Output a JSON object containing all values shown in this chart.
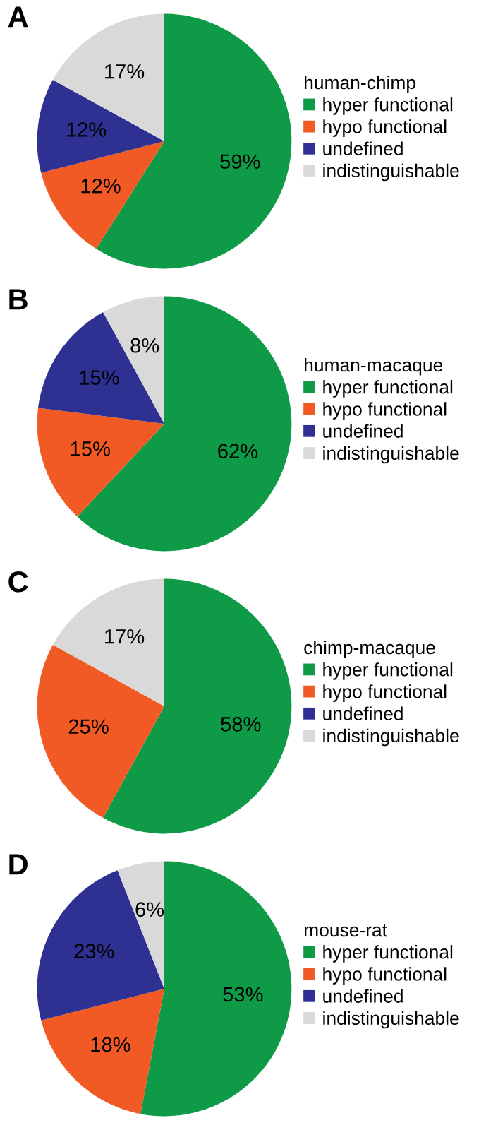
{
  "chart_data": [
    {
      "type": "pie",
      "title": "A",
      "legend_title": "human-chimp",
      "categories": [
        "hyper functional",
        "hypo functional",
        "undefined",
        "indistinguishable"
      ],
      "values": [
        59,
        12,
        12,
        17
      ],
      "value_labels": [
        "59%",
        "12%",
        "12%",
        "17%"
      ],
      "colors": [
        "#0f9a48",
        "#f15a24",
        "#2e3192",
        "#d9d9d9"
      ],
      "legend": "right"
    },
    {
      "type": "pie",
      "title": "B",
      "legend_title": "human-macaque",
      "categories": [
        "hyper functional",
        "hypo functional",
        "undefined",
        "indistinguishable"
      ],
      "values": [
        62,
        15,
        15,
        8
      ],
      "value_labels": [
        "62%",
        "15%",
        "15%",
        "8%"
      ],
      "colors": [
        "#0f9a48",
        "#f15a24",
        "#2e3192",
        "#d9d9d9"
      ],
      "legend": "right"
    },
    {
      "type": "pie",
      "title": "C",
      "legend_title": "chimp-macaque",
      "categories": [
        "hyper functional",
        "hypo functional",
        "undefined",
        "indistinguishable"
      ],
      "values": [
        58,
        25,
        0,
        17
      ],
      "value_labels": [
        "58%",
        "25%",
        null,
        "17%"
      ],
      "colors": [
        "#0f9a48",
        "#f15a24",
        "#2e3192",
        "#d9d9d9"
      ],
      "legend": "right"
    },
    {
      "type": "pie",
      "title": "D",
      "legend_title": "mouse-rat",
      "categories": [
        "hyper functional",
        "hypo functional",
        "undefined",
        "indistinguishable"
      ],
      "values": [
        53,
        18,
        23,
        6
      ],
      "value_labels": [
        "53%",
        "18%",
        "23%",
        "6%"
      ],
      "colors": [
        "#0f9a48",
        "#f15a24",
        "#2e3192",
        "#d9d9d9"
      ],
      "legend": "right"
    }
  ]
}
